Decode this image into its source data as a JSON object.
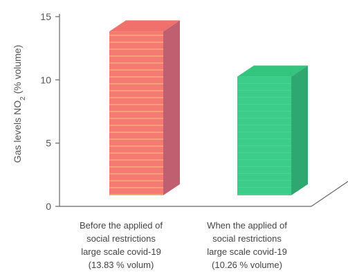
{
  "chart_data": {
    "type": "bar",
    "ylabel": "Gas levels NO",
    "ylabel_sub": "2",
    "ylabel_unit": " (% volume)",
    "yticks": [
      "0",
      "5",
      "10",
      "15"
    ],
    "ylim": [
      0,
      15
    ],
    "grid": false,
    "categories": [
      [
        "Before the applied of",
        "social restrictions",
        "large scale covid-19",
        "(13.83  % volum)"
      ],
      [
        "When the applied of",
        "social restrictions",
        "large scale covid-19",
        "(10.26 % volume)"
      ]
    ],
    "values": [
      13.83,
      10.26
    ],
    "colors": [
      "#f47373",
      "#3ccf8a"
    ]
  }
}
